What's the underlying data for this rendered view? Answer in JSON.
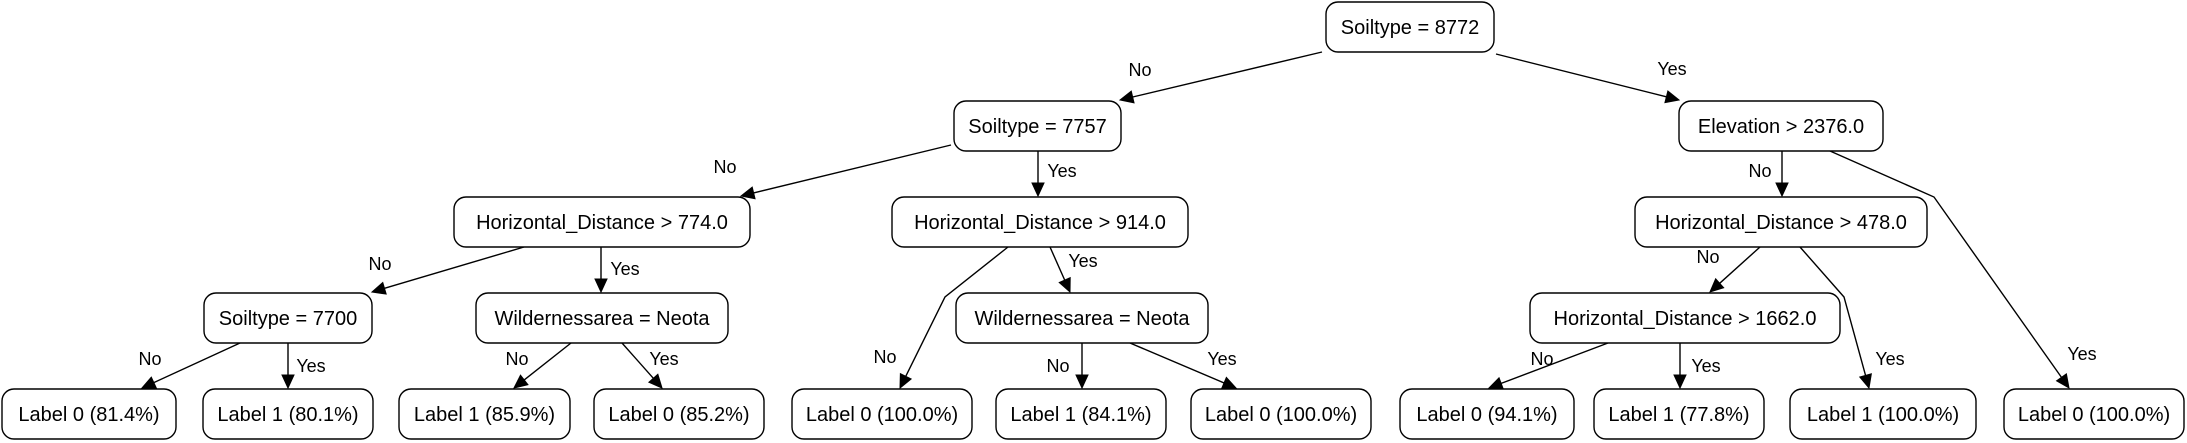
{
  "tree": {
    "nodes": [
      {
        "id": "n1",
        "label": "Soiltype = 8772"
      },
      {
        "id": "n2",
        "label": "Soiltype = 7757"
      },
      {
        "id": "n3",
        "label": "Elevation > 2376.0"
      },
      {
        "id": "n4",
        "label": "Horizontal_Distance > 774.0"
      },
      {
        "id": "n5",
        "label": "Horizontal_Distance > 914.0"
      },
      {
        "id": "n6",
        "label": "Horizontal_Distance > 478.0"
      },
      {
        "id": "n7",
        "label": "Soiltype = 7700"
      },
      {
        "id": "n8",
        "label": "Wildernessarea = Neota"
      },
      {
        "id": "n9",
        "label": "Wildernessarea = Neota"
      },
      {
        "id": "n10",
        "label": "Horizontal_Distance > 1662.0"
      },
      {
        "id": "l1",
        "label": "Label 0 (81.4%)"
      },
      {
        "id": "l2",
        "label": "Label 1 (80.1%)"
      },
      {
        "id": "l3",
        "label": "Label 1 (85.9%)"
      },
      {
        "id": "l4",
        "label": "Label 0 (85.2%)"
      },
      {
        "id": "l5",
        "label": "Label 0 (100.0%)"
      },
      {
        "id": "l6",
        "label": "Label 1 (84.1%)"
      },
      {
        "id": "l7",
        "label": "Label 0 (100.0%)"
      },
      {
        "id": "l8",
        "label": "Label 0 (94.1%)"
      },
      {
        "id": "l9",
        "label": "Label 1 (77.8%)"
      },
      {
        "id": "l10",
        "label": "Label 1 (100.0%)"
      },
      {
        "id": "l11",
        "label": "Label 0 (100.0%)"
      }
    ],
    "edges": [
      {
        "id": "e1",
        "from": "n1",
        "to": "n2",
        "label": "No"
      },
      {
        "id": "e2",
        "from": "n1",
        "to": "n3",
        "label": "Yes"
      },
      {
        "id": "e3",
        "from": "n2",
        "to": "n4",
        "label": "No"
      },
      {
        "id": "e4",
        "from": "n2",
        "to": "n5",
        "label": "Yes"
      },
      {
        "id": "e5",
        "from": "n3",
        "to": "n6",
        "label": "No"
      },
      {
        "id": "e6",
        "from": "n3",
        "to": "l11",
        "label": "Yes"
      },
      {
        "id": "e7",
        "from": "n4",
        "to": "n7",
        "label": "No"
      },
      {
        "id": "e8",
        "from": "n4",
        "to": "n8",
        "label": "Yes"
      },
      {
        "id": "e9",
        "from": "n5",
        "to": "l5",
        "label": "No"
      },
      {
        "id": "e10",
        "from": "n5",
        "to": "n9",
        "label": "Yes"
      },
      {
        "id": "e11",
        "from": "n6",
        "to": "n10",
        "label": "No"
      },
      {
        "id": "e12",
        "from": "n6",
        "to": "l10",
        "label": "Yes"
      },
      {
        "id": "e13",
        "from": "n7",
        "to": "l1",
        "label": "No"
      },
      {
        "id": "e14",
        "from": "n7",
        "to": "l2",
        "label": "Yes"
      },
      {
        "id": "e15",
        "from": "n8",
        "to": "l3",
        "label": "No"
      },
      {
        "id": "e16",
        "from": "n8",
        "to": "l4",
        "label": "Yes"
      },
      {
        "id": "e17",
        "from": "n9",
        "to": "l6",
        "label": "No"
      },
      {
        "id": "e18",
        "from": "n9",
        "to": "l7",
        "label": "Yes"
      },
      {
        "id": "e19",
        "from": "n10",
        "to": "l8",
        "label": "No"
      },
      {
        "id": "e20",
        "from": "n10",
        "to": "l9",
        "label": "Yes"
      }
    ]
  }
}
